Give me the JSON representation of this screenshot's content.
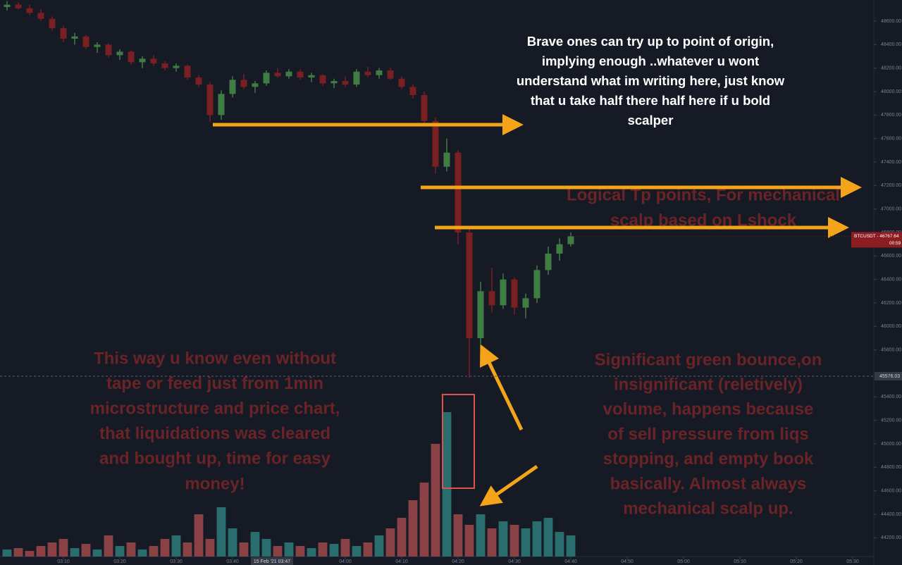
{
  "chart_data": {
    "type": "candlestick",
    "symbol_label": "BTCUSDT - 46767.64",
    "countdown": "00:59",
    "crosshair_price": 45576.03,
    "crosshair_time": {
      "value": 47,
      "label": "15 Feb '21  03:47"
    },
    "x": [
      0,
      2,
      4,
      6,
      8,
      10,
      12,
      14,
      16,
      18,
      20,
      22,
      24,
      26,
      28,
      30,
      32,
      34,
      36,
      38,
      40,
      42,
      44,
      46,
      48,
      50,
      52,
      54,
      56,
      58,
      60,
      62,
      64,
      66,
      68,
      70,
      72,
      74,
      76,
      78,
      80,
      82,
      84,
      86,
      88,
      90,
      92,
      94,
      96,
      98,
      100
    ],
    "open": [
      48720,
      48740,
      48710,
      48670,
      48620,
      48540,
      48450,
      48470,
      48380,
      48400,
      48310,
      48340,
      48250,
      48280,
      48240,
      48200,
      48220,
      48120,
      48060,
      47800,
      47980,
      48100,
      48040,
      48070,
      48160,
      48130,
      48170,
      48120,
      48140,
      48070,
      48090,
      48060,
      48170,
      48140,
      48180,
      48110,
      48040,
      47970,
      47750,
      47360,
      47480,
      46800,
      45900,
      46300,
      46180,
      46400,
      46160,
      46240,
      46480,
      46620,
      46700
    ],
    "high": [
      48770,
      48760,
      48740,
      48700,
      48640,
      48560,
      48500,
      48480,
      48420,
      48410,
      48360,
      48350,
      48300,
      48310,
      48260,
      48240,
      48230,
      48140,
      48080,
      48010,
      48130,
      48150,
      48090,
      48180,
      48200,
      48190,
      48190,
      48160,
      48150,
      48110,
      48130,
      48190,
      48210,
      48200,
      48200,
      48130,
      48060,
      48000,
      47780,
      47600,
      47500,
      46850,
      46380,
      46500,
      46450,
      46420,
      46280,
      46520,
      46680,
      46750,
      46800
    ],
    "low": [
      48690,
      48700,
      48650,
      48600,
      48520,
      48420,
      48400,
      48360,
      48330,
      48290,
      48270,
      48230,
      48200,
      48220,
      48180,
      48170,
      48100,
      48040,
      47740,
      47760,
      47950,
      48020,
      47990,
      48050,
      48120,
      48110,
      48100,
      48080,
      48050,
      48030,
      48040,
      48040,
      48120,
      48110,
      48100,
      48020,
      47940,
      47700,
      47300,
      47320,
      46700,
      45560,
      45850,
      46120,
      46150,
      46100,
      46070,
      46200,
      46440,
      46560,
      46680
    ],
    "close": [
      48740,
      48710,
      48670,
      48620,
      48540,
      48450,
      48470,
      48380,
      48400,
      48310,
      48340,
      48250,
      48280,
      48240,
      48200,
      48220,
      48120,
      48060,
      47800,
      47980,
      48100,
      48040,
      48070,
      48160,
      48130,
      48170,
      48120,
      48140,
      48070,
      48090,
      48060,
      48170,
      48140,
      48180,
      48110,
      48040,
      47970,
      47750,
      47360,
      47480,
      46800,
      45900,
      46300,
      46180,
      46400,
      46160,
      46240,
      46480,
      46620,
      46700,
      46767.64
    ],
    "volume": [
      10,
      12,
      8,
      15,
      20,
      25,
      12,
      18,
      10,
      30,
      15,
      20,
      10,
      15,
      25,
      30,
      20,
      60,
      25,
      70,
      40,
      20,
      35,
      25,
      15,
      20,
      15,
      12,
      20,
      18,
      25,
      15,
      20,
      30,
      40,
      55,
      80,
      105,
      160,
      205,
      60,
      45,
      60,
      40,
      50,
      45,
      40,
      50,
      55,
      35,
      30
    ],
    "up_color": "#3f7d45",
    "down_color": "#7a1f22",
    "volume_up_color": "#2d7c7b",
    "volume_down_color": "#a04a4e",
    "xlim": [
      -1.25,
      153.75
    ],
    "ylim": [
      44040,
      48780
    ],
    "volume_ylim": [
      0,
      790
    ],
    "xticks": [
      {
        "value": 10,
        "label": "03:10"
      },
      {
        "value": 20,
        "label": "03:20"
      },
      {
        "value": 30,
        "label": "03:30"
      },
      {
        "value": 40,
        "label": "03:40"
      },
      {
        "value": 60,
        "label": "04:00"
      },
      {
        "value": 70,
        "label": "04:10"
      },
      {
        "value": 80,
        "label": "04:20"
      },
      {
        "value": 90,
        "label": "04:30"
      },
      {
        "value": 100,
        "label": "04:40"
      },
      {
        "value": 110,
        "label": "04:50"
      },
      {
        "value": 120,
        "label": "05:00"
      },
      {
        "value": 130,
        "label": "05:10"
      },
      {
        "value": 140,
        "label": "05:20"
      },
      {
        "value": 150,
        "label": "05:30"
      }
    ],
    "yticks": [
      {
        "value": 48600,
        "label": "48600.00"
      },
      {
        "value": 48400,
        "label": "48400.00"
      },
      {
        "value": 48200,
        "label": "48200.00"
      },
      {
        "value": 48000,
        "label": "48000.00"
      },
      {
        "value": 47800,
        "label": "47800.00"
      },
      {
        "value": 47600,
        "label": "47600.00"
      },
      {
        "value": 47400,
        "label": "47400.00"
      },
      {
        "value": 47200,
        "label": "47200.00"
      },
      {
        "value": 47000,
        "label": "47000.00"
      },
      {
        "value": 46800,
        "label": "46800.00"
      },
      {
        "value": 46600,
        "label": "46600.00"
      },
      {
        "value": 46400,
        "label": "46400.00"
      },
      {
        "value": 46200,
        "label": "46200.00"
      },
      {
        "value": 46000,
        "label": "46000.00"
      },
      {
        "value": 45800,
        "label": "45800.00"
      },
      {
        "value": 45400,
        "label": "45400.00"
      },
      {
        "value": 45200,
        "label": "45200.00"
      },
      {
        "value": 45000,
        "label": "45000.00"
      },
      {
        "value": 44800,
        "label": "44800.00"
      },
      {
        "value": 44600,
        "label": "44600.00"
      },
      {
        "value": 44400,
        "label": "44400.00"
      },
      {
        "value": 44200,
        "label": "44200.00"
      }
    ],
    "annotations": {
      "origin": [
        "Brave ones can try up to point of origin,",
        "implying enough ..whatever u wont",
        "understand what im writing here, just know",
        "that u take half there half here if u bold",
        "scalper"
      ],
      "tp": [
        "Logical Tp points, For mechanical",
        "scalp based on Lshock"
      ],
      "left": [
        "This way u know even without",
        "tape or feed just from 1min",
        "microstructure and price chart,",
        "that liquidations was cleared",
        "and bought up, time for easy",
        "money!"
      ],
      "right": [
        "Significant green bounce,on",
        "insignificant (reletively)",
        "volume, happens because",
        "of sell pressure from liqs",
        "stopping, and empty book",
        "basically. Almost always",
        "mechanical scalp up."
      ]
    }
  }
}
